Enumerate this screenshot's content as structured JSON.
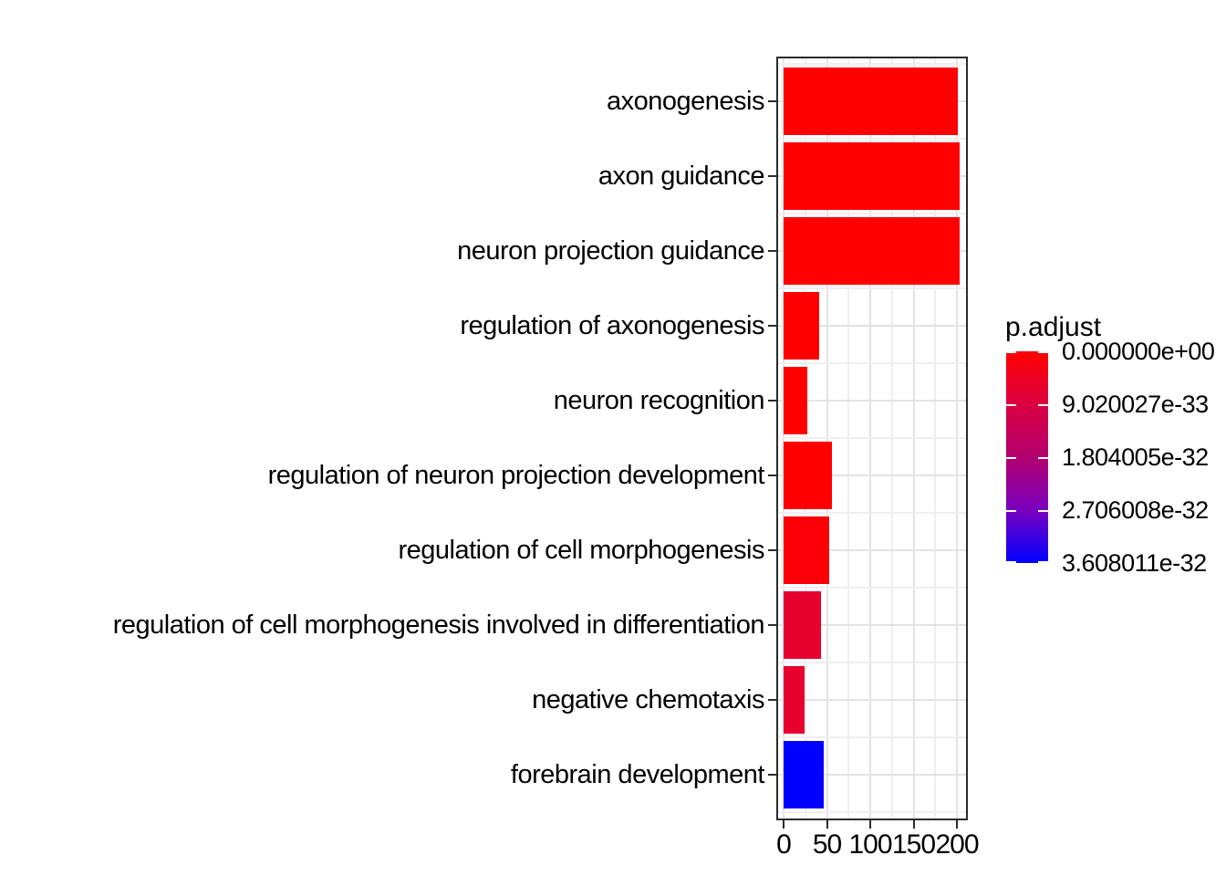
{
  "chart_data": {
    "type": "bar",
    "orientation": "horizontal",
    "title": "",
    "xlabel": "",
    "ylabel": "",
    "categories": [
      "axonogenesis",
      "axon guidance",
      "neuron projection guidance",
      "regulation of axonogenesis",
      "neuron recognition",
      "regulation of neuron projection development",
      "regulation of cell morphogenesis",
      "regulation of cell morphogenesis involved in differentiation",
      "negative chemotaxis",
      "forebrain development"
    ],
    "values": [
      201,
      203,
      203,
      41,
      27,
      56,
      53,
      43,
      24,
      46
    ],
    "bar_colors": [
      "#ff0000",
      "#ff0000",
      "#ff0000",
      "#ff0000",
      "#ff0000",
      "#ff0000",
      "#fc0007",
      "#e8002f",
      "#e8002f",
      "#0000ff"
    ],
    "x_ticks": [
      0,
      50,
      100,
      150,
      200
    ],
    "x_tick_labels": [
      "0",
      "50",
      "100",
      "150",
      "200"
    ],
    "x_minor_ticks": [
      25,
      75,
      125,
      175
    ],
    "xlim_shown": [
      -7,
      214
    ],
    "grid": "major+minor, light gray on white panel",
    "panel_border_color": "#2b2b2b",
    "grid_color_major": "#e3e3e3",
    "grid_color_minor": "#efefef",
    "legend": {
      "title": "p.adjust",
      "position": "right",
      "type": "colorbar",
      "labels": [
        "0.000000e+00",
        "9.020027e-33",
        "1.804005e-32",
        "2.706008e-32",
        "3.608011e-32"
      ],
      "gradient_top_color": "#ff0000",
      "gradient_bottom_color": "#0000ff",
      "gradient_stops": [
        "#ff0000",
        "#dc0040",
        "#b2006f",
        "#7a00bf",
        "#0000ff"
      ]
    }
  }
}
